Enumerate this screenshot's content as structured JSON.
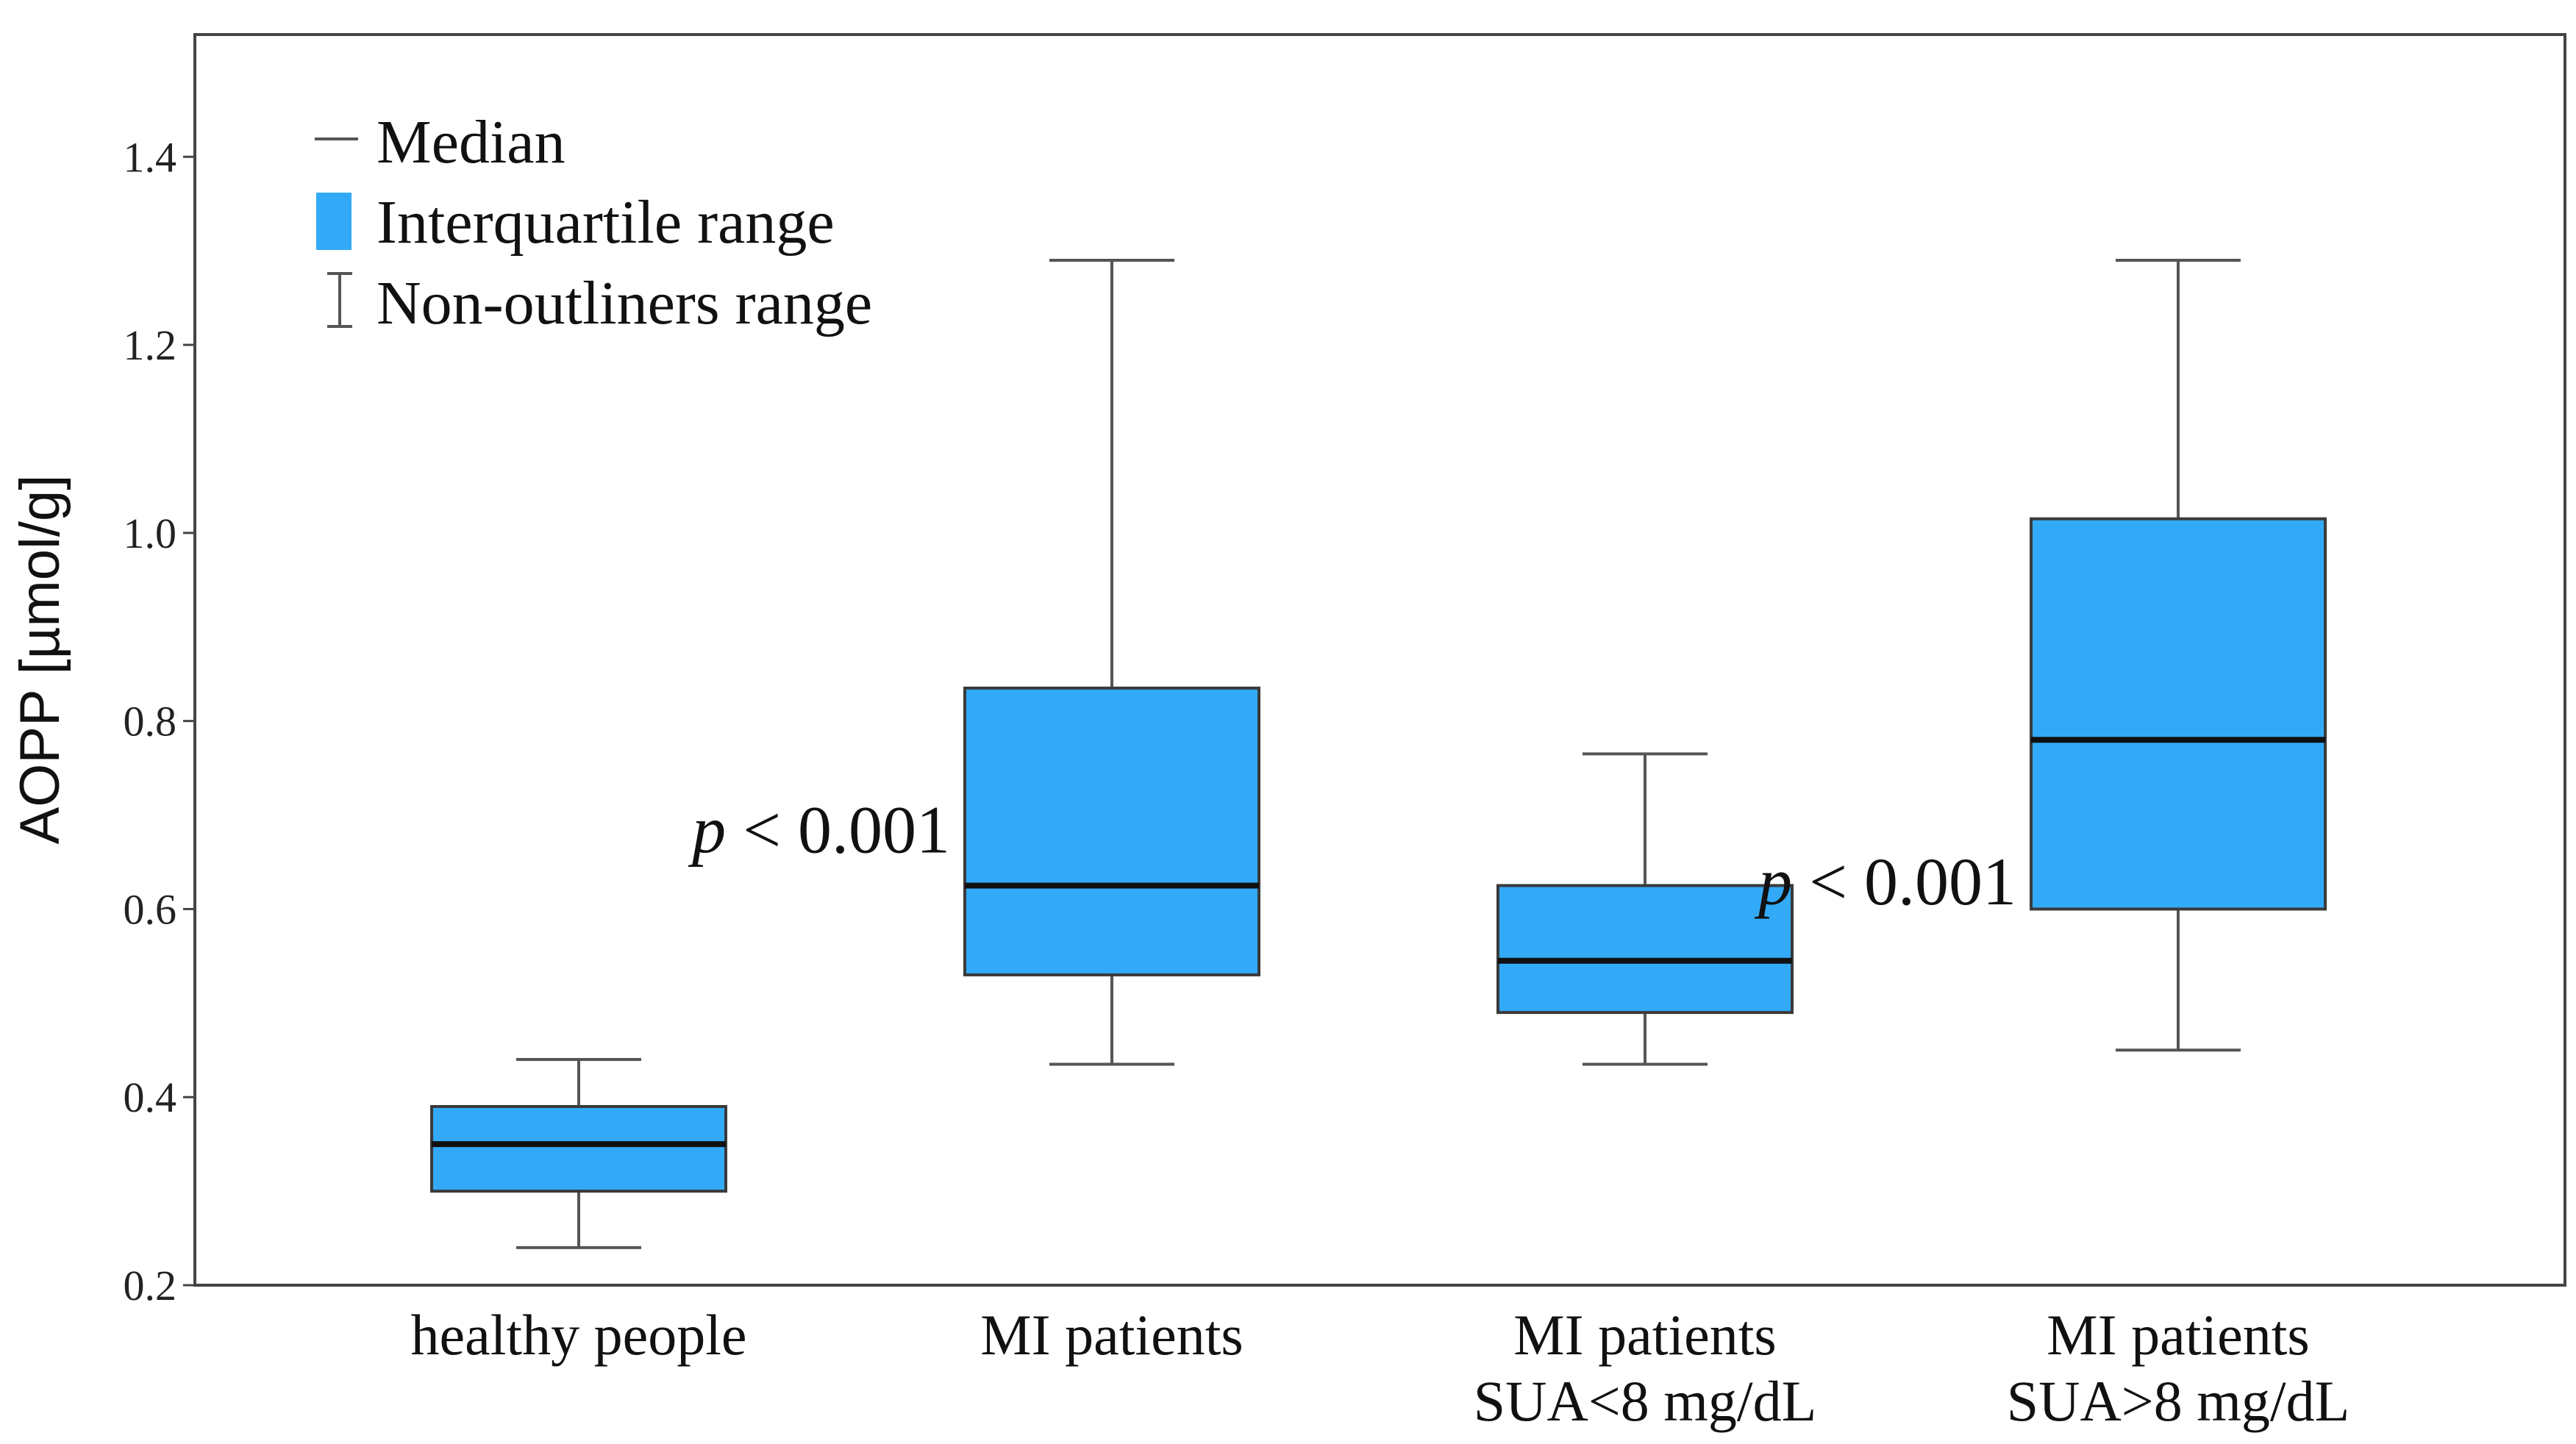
{
  "chart_data": {
    "type": "boxplot",
    "title": "",
    "xlabel": "",
    "ylabel": "AOPP [µmol/g]",
    "ylim": [
      0.2,
      1.53
    ],
    "yticks": [
      "0.2",
      "0.4",
      "0.6",
      "0.8",
      "1.0",
      "1.2",
      "1.4"
    ],
    "colors": {
      "box_fill": "#33AAF7",
      "box_stroke": "#3a3a3a",
      "median": "#111111",
      "whisker": "#555555",
      "frame": "#444444"
    },
    "legend": {
      "position": "top-left",
      "items": [
        {
          "label": "Median",
          "icon": "median-line-icon"
        },
        {
          "label": "Interquartile range",
          "icon": "iqr-box-icon"
        },
        {
          "label": "Non-outliners range",
          "icon": "whisker-range-icon"
        }
      ]
    },
    "groups": [
      {
        "label": [
          "healthy people"
        ],
        "min": 0.24,
        "q1": 0.3,
        "median": 0.35,
        "q3": 0.39,
        "max": 0.44,
        "annotation": null
      },
      {
        "label": [
          "MI patients"
        ],
        "min": 0.435,
        "q1": 0.53,
        "median": 0.625,
        "q3": 0.835,
        "max": 1.29,
        "annotation": {
          "italic": "p",
          "rest": " < 0.001",
          "value_y": 0.66
        }
      },
      {
        "label": [
          "MI patients",
          "SUA<8 mg/dL"
        ],
        "min": 0.435,
        "q1": 0.49,
        "median": 0.545,
        "q3": 0.625,
        "max": 0.765,
        "annotation": null
      },
      {
        "label": [
          "MI patients",
          "SUA>8 mg/dL"
        ],
        "min": 0.45,
        "q1": 0.6,
        "median": 0.78,
        "q3": 1.015,
        "max": 1.29,
        "annotation": {
          "italic": "p",
          "rest": " < 0.001",
          "value_y": 0.605
        }
      }
    ]
  }
}
